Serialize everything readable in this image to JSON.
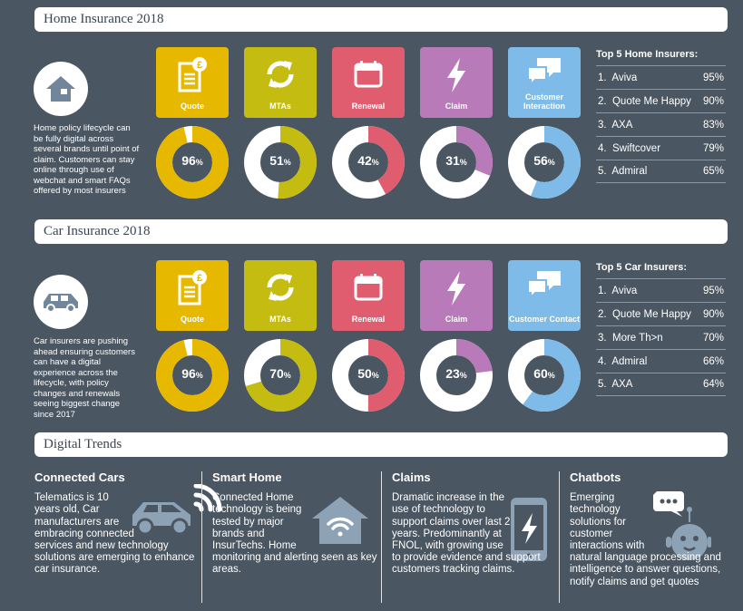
{
  "colors": {
    "background": "#4a5661",
    "quote": "#e6b800",
    "mtas": "#c4bc10",
    "renewal": "#e05d70",
    "claim": "#b87ab8",
    "customer": "#7fbbe8"
  },
  "home": {
    "title": "Home Insurance 2018",
    "icon": "house-icon",
    "description": "Home policy lifecycle can be fully digital across several brands until point of claim.  Customers can stay online through use of webchat and smart FAQs offered by most insurers",
    "stages": [
      {
        "label": "Quote",
        "icon": "quote-document-icon",
        "value": 96
      },
      {
        "label": "MTAs",
        "icon": "refresh-arrows-icon",
        "value": 51
      },
      {
        "label": "Renewal",
        "icon": "calendar-icon",
        "value": 42
      },
      {
        "label": "Claim",
        "icon": "lightning-icon",
        "value": 31
      },
      {
        "label": "Customer Interaction",
        "icon": "chat-bubbles-icon",
        "value": 56
      }
    ],
    "top5_title": "Top 5 Home Insurers:",
    "top5": [
      {
        "rank": "1.",
        "name": "Aviva",
        "pct": "95%"
      },
      {
        "rank": "2.",
        "name": "Quote Me Happy",
        "pct": "90%"
      },
      {
        "rank": "3.",
        "name": "AXA",
        "pct": "83%"
      },
      {
        "rank": "4.",
        "name": "Swiftcover",
        "pct": "79%"
      },
      {
        "rank": "5.",
        "name": "Admiral",
        "pct": "65%"
      }
    ]
  },
  "car": {
    "title": "Car Insurance 2018",
    "icon": "car-icon",
    "description": "Car insurers are pushing ahead ensuring customers can have a digital experience across the lifecycle, with policy changes and renewals seeing biggest change since 2017",
    "stages": [
      {
        "label": "Quote",
        "icon": "quote-document-icon",
        "value": 96
      },
      {
        "label": "MTAs",
        "icon": "refresh-arrows-icon",
        "value": 70
      },
      {
        "label": "Renewal",
        "icon": "calendar-icon",
        "value": 50
      },
      {
        "label": "Claim",
        "icon": "lightning-icon",
        "value": 23
      },
      {
        "label": "Customer Contact",
        "icon": "chat-bubbles-icon",
        "value": 60
      }
    ],
    "top5_title": "Top 5 Car Insurers:",
    "top5": [
      {
        "rank": "1.",
        "name": "Aviva",
        "pct": "95%"
      },
      {
        "rank": "2.",
        "name": "Quote Me Happy",
        "pct": "90%"
      },
      {
        "rank": "3.",
        "name": "More Th>n",
        "pct": "70%"
      },
      {
        "rank": "4.",
        "name": "Admiral",
        "pct": "66%"
      },
      {
        "rank": "5.",
        "name": "AXA",
        "pct": "64%"
      }
    ]
  },
  "trends": {
    "title": "Digital Trends",
    "items": [
      {
        "title": "Connected Cars",
        "icon": "connected-car-icon",
        "text": "Telematics is 10 years old, Car manufacturers are embracing connected services and new technology solutions are emerging to enhance car insurance."
      },
      {
        "title": "Smart Home",
        "icon": "smart-home-wifi-icon",
        "text": "Connected Home technology is being tested by major brands and InsurTechs.  Home monitoring and alerting seen as key areas."
      },
      {
        "title": "Claims",
        "icon": "phone-lightning-icon",
        "text": "Dramatic increase in the use of technology to support claims over last 2 years. Predominantly at FNOL, with growing use to provide evidence and support customers tracking claims."
      },
      {
        "title": "Chatbots",
        "icon": "chatbot-icon",
        "text": "Emerging technology solutions for customer interactions with natural language processing and intelligence to answer questions, notify claims and get quotes"
      }
    ]
  }
}
